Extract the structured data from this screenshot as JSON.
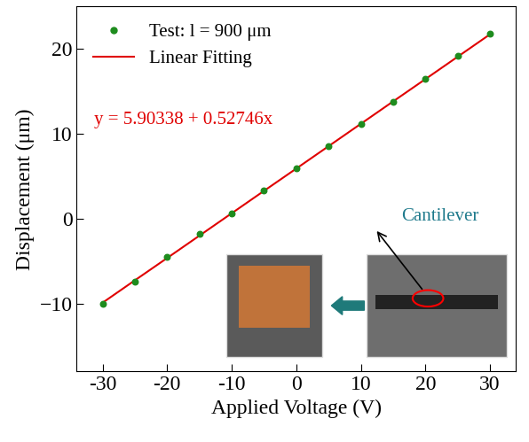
{
  "chart_data": {
    "type": "scatter",
    "x_label": "Applied Voltage (V)",
    "y_label": "Displacement (μm)",
    "x": [
      -30,
      -25,
      -20,
      -15,
      -10,
      -5,
      0,
      5,
      10,
      15,
      20,
      25,
      30
    ],
    "series": [
      {
        "name": "Test: l = 900 μm",
        "type": "scatter",
        "color": "#1e8c1e",
        "marker": "o",
        "values": [
          -10.0,
          -7.4,
          -4.5,
          -1.8,
          0.6,
          3.3,
          5.9,
          8.5,
          11.2,
          13.8,
          16.5,
          19.2,
          21.8
        ]
      },
      {
        "name": "Linear Fitting",
        "type": "line",
        "color": "#e00000",
        "line_style": "solid",
        "values": [
          -9.92,
          -7.28,
          -4.65,
          -2.01,
          0.63,
          3.27,
          5.9,
          8.54,
          11.18,
          13.82,
          16.45,
          19.09,
          21.73
        ]
      }
    ],
    "annotations": [
      {
        "text": "y = 5.90338 + 0.52746x",
        "color": "#e00000"
      },
      {
        "text": "Cantilever",
        "color": "#1f7a8c"
      }
    ],
    "xlim": [
      -34,
      34
    ],
    "xticks": [
      -30,
      -20,
      -10,
      0,
      10,
      20,
      30
    ],
    "ylim": [
      -18,
      25
    ],
    "yticks": [
      {
        "value": -10,
        "label": "−10"
      },
      0,
      10,
      20
    ],
    "legend": "upper left",
    "grid": false
  }
}
